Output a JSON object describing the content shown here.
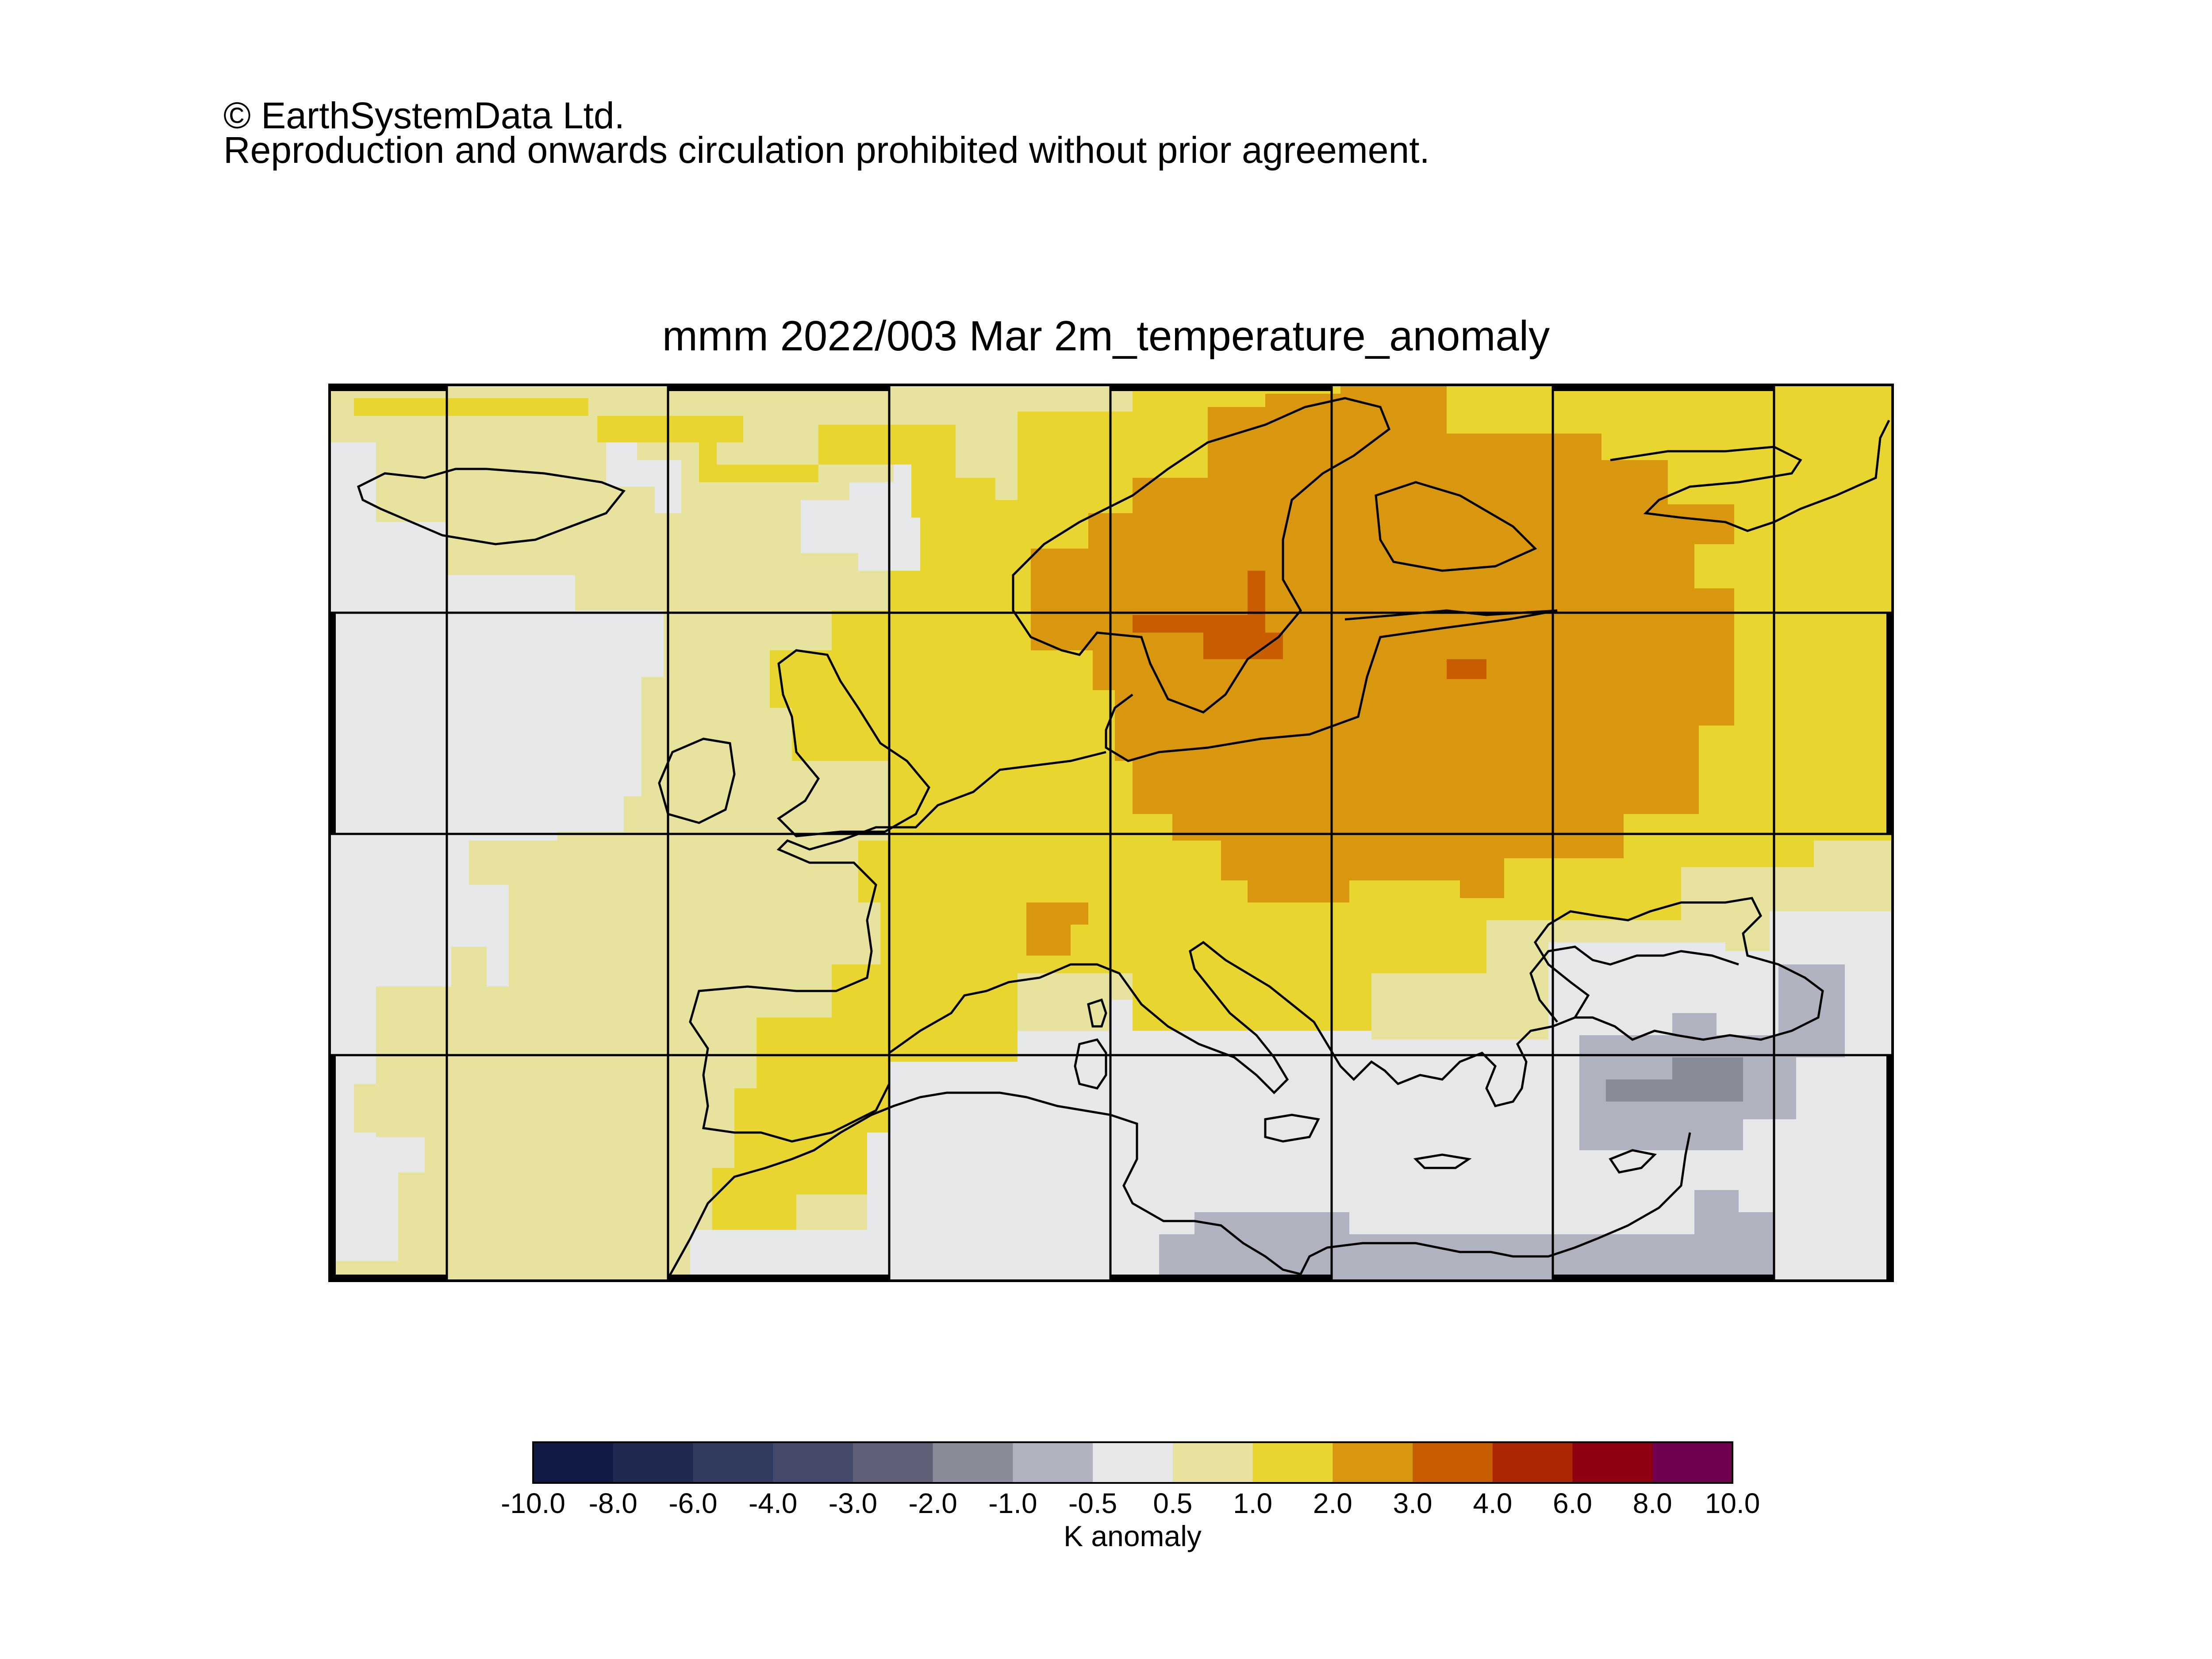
{
  "copyright": {
    "line1": "© EarthSystemData Ltd.",
    "line2": "Reproduction and onwards circulation prohibited without prior agreement."
  },
  "map": {
    "title": "mmm 2022/003 Mar 2m_temperature_anomaly",
    "variable": "2m_temperature_anomaly",
    "region": "Europe",
    "graticule": true,
    "coastlines": true
  },
  "colorbar": {
    "label": "K anomaly",
    "ticks": [
      "-10.0",
      "-8.0",
      "-6.0",
      "-4.0",
      "-3.0",
      "-2.0",
      "-1.0",
      "-0.5",
      "0.5",
      "1.0",
      "2.0",
      "3.0",
      "4.0",
      "6.0",
      "8.0",
      "10.0"
    ],
    "colors": [
      "#101a45",
      "#1f2a52",
      "#313b60",
      "#45496b",
      "#5e6078",
      "#8a8b98",
      "#b1b2bf",
      "#e6e7e8",
      "#e8e29f",
      "#e8d530",
      "#d8970f",
      "#c85d00",
      "#ae2703",
      "#8e0012",
      "#700050"
    ]
  },
  "palette": {
    "c_mid": "#e6e7e8",
    "c_pos1": "#e8e29f",
    "c_pos2": "#e8d530",
    "c_pos3": "#d8970f",
    "c_pos4": "#c85d00",
    "c_neg1": "#b1b2bf",
    "c_neg2": "#8a8b98"
  }
}
